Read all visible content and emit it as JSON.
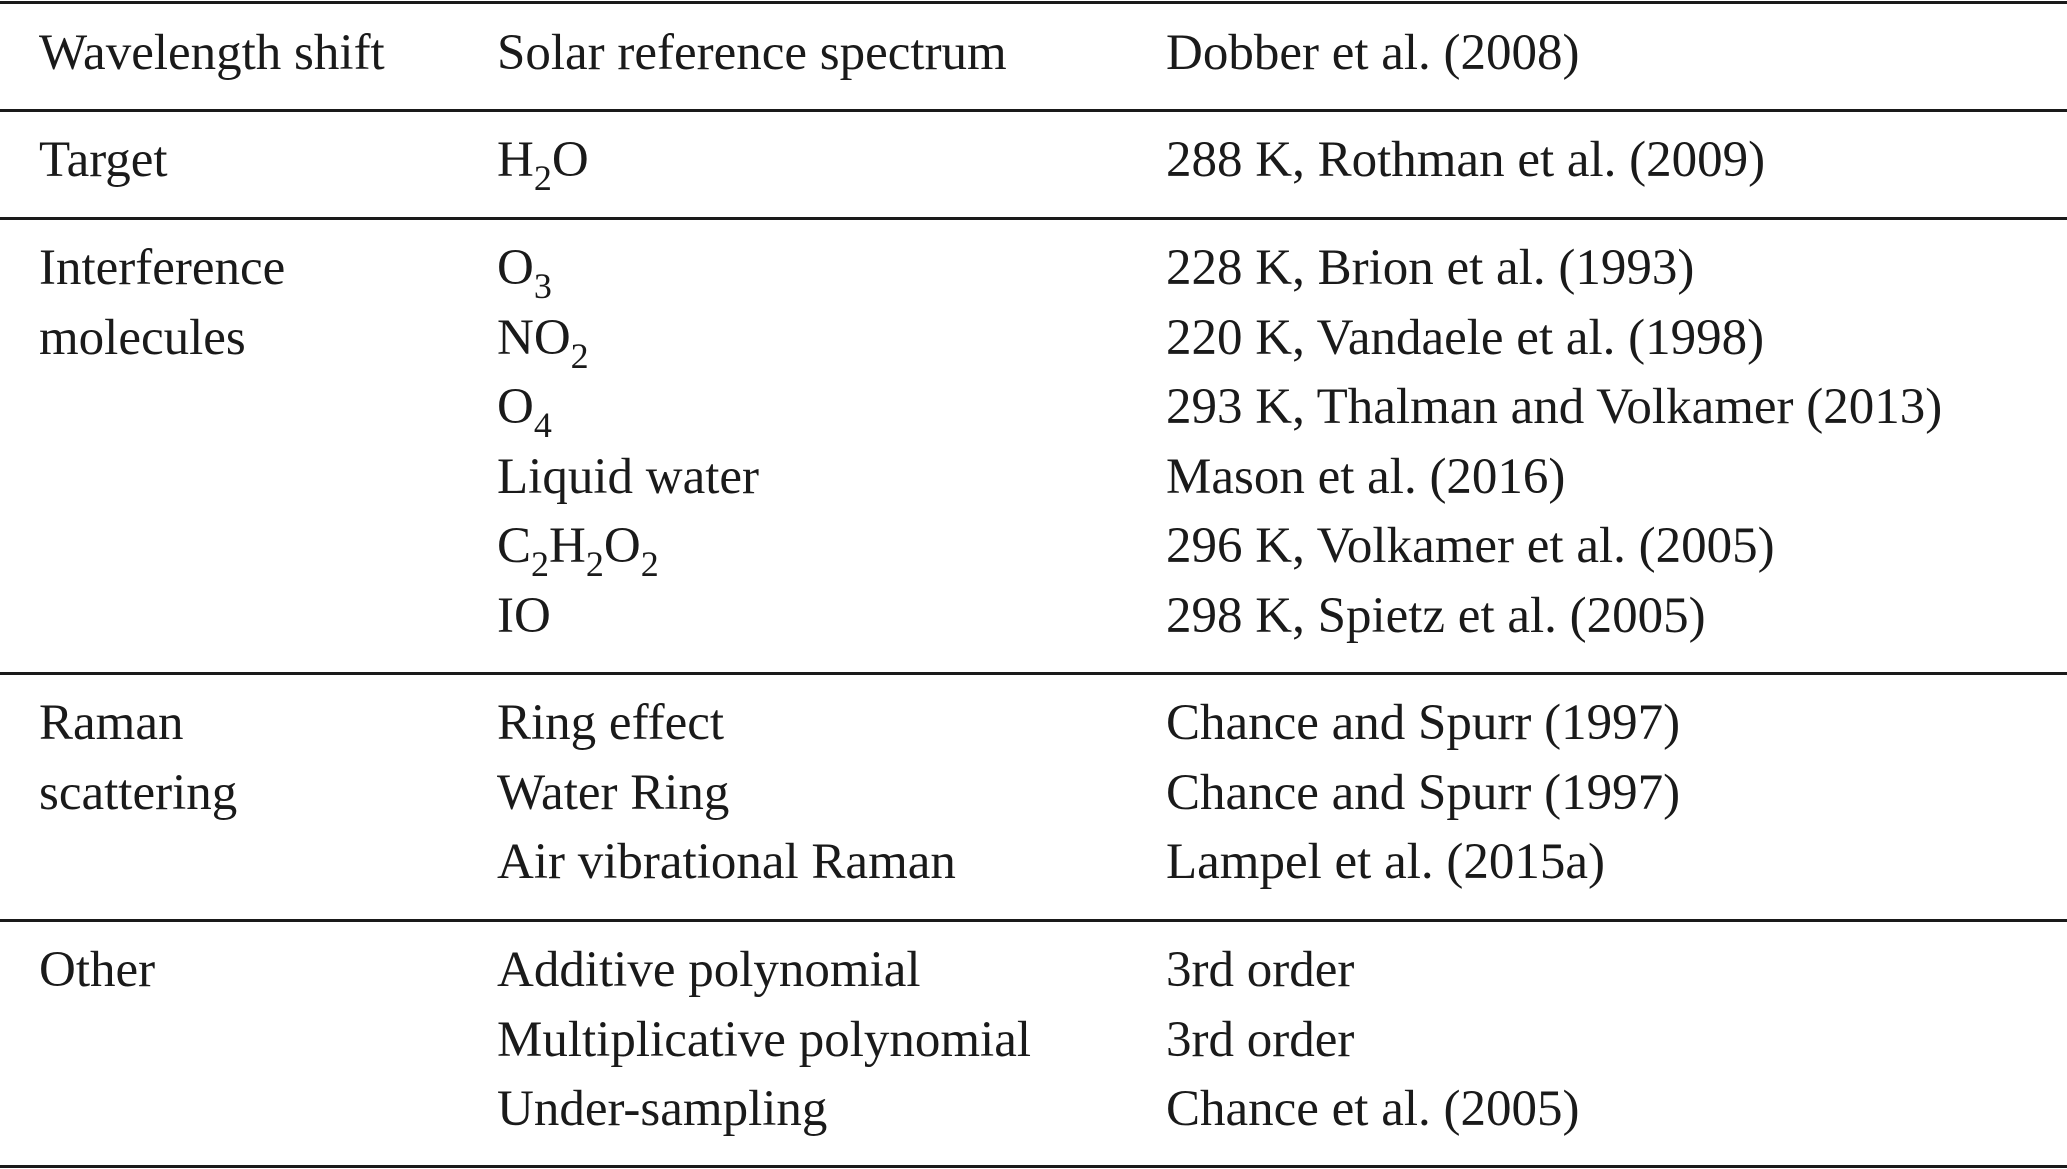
{
  "table": {
    "header": {
      "category": "Wavelength shift",
      "item": "Solar reference spectrum",
      "reference": "Dobber et al. (2008)"
    },
    "groups": [
      {
        "name": "target",
        "category_lines": [
          "Target"
        ],
        "items": [
          {
            "item_parts": [
              [
                "H",
                ""
              ],
              [
                "2",
                "sub"
              ],
              [
                "O",
                ""
              ]
            ],
            "reference": "288 K, Rothman et al. (2009)"
          }
        ]
      },
      {
        "name": "interference",
        "category_lines": [
          "Interference",
          "molecules"
        ],
        "items": [
          {
            "item_parts": [
              [
                "O",
                ""
              ],
              [
                "3",
                "sub"
              ]
            ],
            "reference": "228 K, Brion et al. (1993)"
          },
          {
            "item_parts": [
              [
                "NO",
                ""
              ],
              [
                "2",
                "sub"
              ]
            ],
            "reference": "220 K, Vandaele et al. (1998)"
          },
          {
            "item_parts": [
              [
                "O",
                ""
              ],
              [
                "4",
                "sub"
              ]
            ],
            "reference": "293 K, Thalman and Volkamer (2013)"
          },
          {
            "item_parts": [
              [
                "Liquid water",
                ""
              ]
            ],
            "reference": "Mason et al. (2016)"
          },
          {
            "item_parts": [
              [
                "C",
                ""
              ],
              [
                "2",
                "sub"
              ],
              [
                "H",
                ""
              ],
              [
                "2",
                "sub"
              ],
              [
                "O",
                ""
              ],
              [
                "2",
                "sub"
              ]
            ],
            "reference": "296 K, Volkamer et al. (2005)"
          },
          {
            "item_parts": [
              [
                "IO",
                ""
              ]
            ],
            "reference": "298 K, Spietz et al. (2005)"
          }
        ]
      },
      {
        "name": "raman",
        "category_lines": [
          "Raman",
          "scattering"
        ],
        "items": [
          {
            "item_parts": [
              [
                "Ring effect",
                ""
              ]
            ],
            "reference": "Chance and Spurr (1997)"
          },
          {
            "item_parts": [
              [
                "Water Ring",
                ""
              ]
            ],
            "reference": "Chance and Spurr (1997)"
          },
          {
            "item_parts": [
              [
                "Air vibrational Raman",
                ""
              ]
            ],
            "reference": "Lampel et al. (2015a)"
          }
        ]
      },
      {
        "name": "other",
        "category_lines": [
          "Other"
        ],
        "items": [
          {
            "item_parts": [
              [
                "Additive polynomial",
                ""
              ]
            ],
            "reference": "3rd order"
          },
          {
            "item_parts": [
              [
                "Multiplicative polynomial",
                ""
              ]
            ],
            "reference": "3rd order"
          },
          {
            "item_parts": [
              [
                "Under-sampling",
                ""
              ]
            ],
            "reference": "Chance et al. (2005)"
          }
        ]
      }
    ]
  }
}
